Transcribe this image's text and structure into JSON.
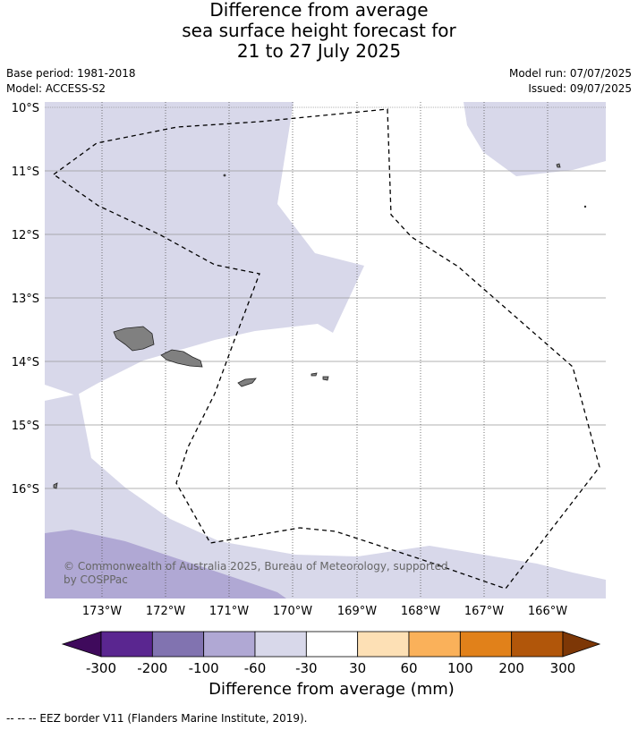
{
  "title": {
    "line1": "Difference from average",
    "line2": "sea surface height forecast for",
    "line3": "21 to 27 July 2025"
  },
  "meta": {
    "base_period": "Base period: 1981-2018",
    "model": "Model: ACCESS-S2",
    "model_run": "Model run: 07/07/2025",
    "issued": "Issued: 09/07/2025"
  },
  "axes": {
    "lat_labels": [
      "10°S",
      "11°S",
      "12°S",
      "13°S",
      "14°S",
      "15°S",
      "16°S"
    ],
    "lon_labels": [
      "173°W",
      "172°W",
      "171°W",
      "170°W",
      "169°W",
      "168°W",
      "167°W",
      "166°W"
    ]
  },
  "colorbar": {
    "title": "Difference from average (mm)",
    "ticks": [
      "-300",
      "-200",
      "-100",
      "-60",
      "-30",
      "30",
      "60",
      "100",
      "200",
      "300"
    ],
    "colors": [
      "#3f0a5c",
      "#5a2690",
      "#8173b0",
      "#b0a8d4",
      "#d8d8ea",
      "#ffffff",
      "#fde0b5",
      "#fab15a",
      "#e1811a",
      "#b1560a",
      "#7d3706"
    ]
  },
  "credit": "© Commonwealth of Australia 2025, Bureau of Meteorology, supported by COSPPac",
  "footnote": "--  --  -- EEZ border V11 (Flanders Marine Institute, 2019)."
}
